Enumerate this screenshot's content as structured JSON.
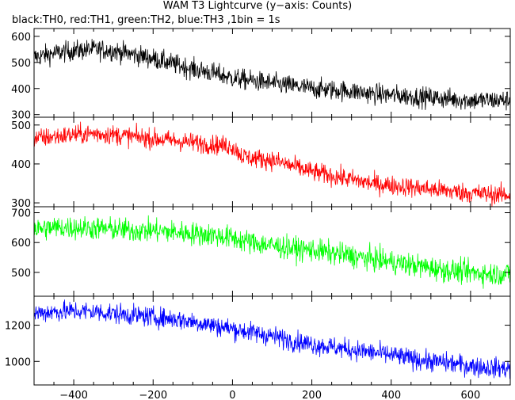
{
  "title": "WAM T3 Lightcurve (y−axis: Counts)",
  "subtitle": "black:TH0, red:TH1, green:TH2, blue:TH3 ,1bin = 1s",
  "chart_data": {
    "type": "line",
    "xlim": [
      -500,
      700
    ],
    "x_ticks": [
      -400,
      -200,
      0,
      200,
      400,
      600
    ],
    "x_tick_labels": [
      "−400",
      "−200",
      "0",
      "200",
      "400",
      "600"
    ],
    "bin_seconds": 1,
    "grid": false,
    "panels": [
      {
        "name": "TH0",
        "color": "#000000",
        "ylim": [
          290,
          630
        ],
        "y_ticks": [
          300,
          400,
          500,
          600
        ],
        "profile": [
          [
            -500,
            520
          ],
          [
            -450,
            535
          ],
          [
            -400,
            545
          ],
          [
            -350,
            550
          ],
          [
            -300,
            545
          ],
          [
            -250,
            530
          ],
          [
            -200,
            515
          ],
          [
            -150,
            495
          ],
          [
            -100,
            475
          ],
          [
            -50,
            460
          ],
          [
            0,
            440
          ],
          [
            50,
            430
          ],
          [
            100,
            420
          ],
          [
            150,
            410
          ],
          [
            200,
            400
          ],
          [
            250,
            395
          ],
          [
            300,
            390
          ],
          [
            350,
            380
          ],
          [
            400,
            375
          ],
          [
            450,
            370
          ],
          [
            500,
            365
          ],
          [
            550,
            360
          ],
          [
            600,
            355
          ],
          [
            650,
            355
          ],
          [
            700,
            355
          ]
        ],
        "noise": 28
      },
      {
        "name": "TH1",
        "color": "#ff0000",
        "ylim": [
          290,
          520
        ],
        "y_ticks": [
          300,
          400,
          500
        ],
        "profile": [
          [
            -500,
            465
          ],
          [
            -450,
            470
          ],
          [
            -400,
            475
          ],
          [
            -350,
            478
          ],
          [
            -300,
            475
          ],
          [
            -250,
            470
          ],
          [
            -200,
            465
          ],
          [
            -150,
            460
          ],
          [
            -100,
            455
          ],
          [
            -50,
            450
          ],
          [
            0,
            445
          ],
          [
            25,
            420
          ],
          [
            50,
            415
          ],
          [
            100,
            410
          ],
          [
            150,
            395
          ],
          [
            200,
            380
          ],
          [
            250,
            370
          ],
          [
            300,
            360
          ],
          [
            350,
            350
          ],
          [
            400,
            345
          ],
          [
            450,
            340
          ],
          [
            500,
            335
          ],
          [
            550,
            330
          ],
          [
            600,
            325
          ],
          [
            650,
            322
          ],
          [
            700,
            320
          ]
        ],
        "noise": 18
      },
      {
        "name": "TH2",
        "color": "#00ff00",
        "ylim": [
          420,
          720
        ],
        "y_ticks": [
          500,
          600,
          700
        ],
        "profile": [
          [
            -500,
            645
          ],
          [
            -450,
            650
          ],
          [
            -400,
            650
          ],
          [
            -350,
            648
          ],
          [
            -300,
            645
          ],
          [
            -250,
            640
          ],
          [
            -200,
            640
          ],
          [
            -150,
            635
          ],
          [
            -100,
            630
          ],
          [
            -50,
            625
          ],
          [
            0,
            615
          ],
          [
            50,
            600
          ],
          [
            100,
            590
          ],
          [
            150,
            580
          ],
          [
            200,
            575
          ],
          [
            250,
            565
          ],
          [
            300,
            555
          ],
          [
            350,
            545
          ],
          [
            400,
            535
          ],
          [
            450,
            525
          ],
          [
            500,
            515
          ],
          [
            550,
            505
          ],
          [
            600,
            500
          ],
          [
            650,
            495
          ],
          [
            700,
            495
          ]
        ],
        "noise": 28
      },
      {
        "name": "TH3",
        "color": "#0000ff",
        "ylim": [
          870,
          1360
        ],
        "y_ticks": [
          1000,
          1200
        ],
        "y_tick_labels": [
          "1000",
          "1200"
        ],
        "profile": [
          [
            -500,
            1265
          ],
          [
            -450,
            1275
          ],
          [
            -400,
            1278
          ],
          [
            -350,
            1275
          ],
          [
            -300,
            1265
          ],
          [
            -250,
            1255
          ],
          [
            -200,
            1245
          ],
          [
            -150,
            1235
          ],
          [
            -100,
            1220
          ],
          [
            -50,
            1200
          ],
          [
            0,
            1180
          ],
          [
            50,
            1160
          ],
          [
            100,
            1140
          ],
          [
            150,
            1115
          ],
          [
            200,
            1095
          ],
          [
            250,
            1080
          ],
          [
            300,
            1065
          ],
          [
            350,
            1050
          ],
          [
            400,
            1035
          ],
          [
            450,
            1015
          ],
          [
            500,
            1000
          ],
          [
            550,
            990
          ],
          [
            600,
            975
          ],
          [
            650,
            965
          ],
          [
            700,
            960
          ]
        ],
        "noise": 40
      }
    ]
  }
}
